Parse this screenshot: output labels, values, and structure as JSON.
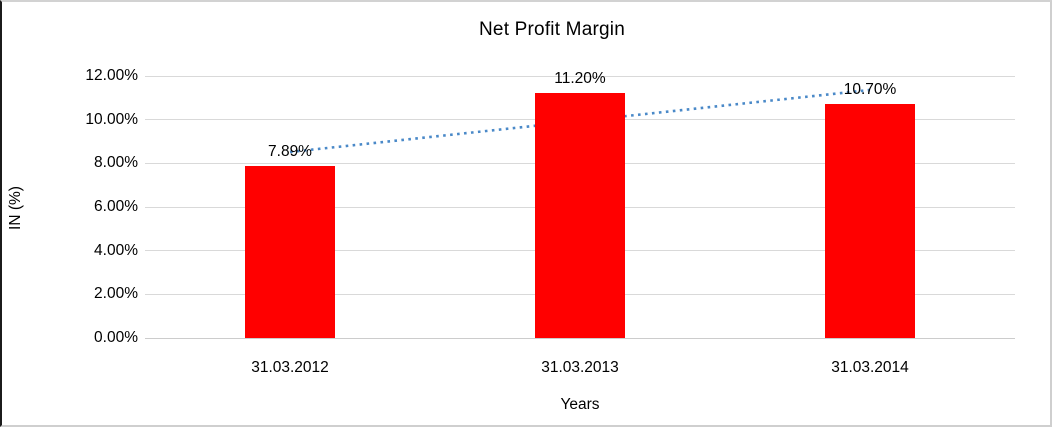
{
  "chart_data": {
    "type": "bar",
    "title": "Net Profit Margin",
    "xlabel": "Years",
    "ylabel": "IN (%)",
    "categories": [
      "31.03.2012",
      "31.03.2013",
      "31.03.2014"
    ],
    "values": [
      7.89,
      11.2,
      10.7
    ],
    "data_labels": [
      "7.89%",
      "11.20%",
      "10.70%"
    ],
    "y_ticks": [
      {
        "value": 0,
        "label": "0.00%"
      },
      {
        "value": 2,
        "label": "2.00%"
      },
      {
        "value": 4,
        "label": "4.00%"
      },
      {
        "value": 6,
        "label": "6.00%"
      },
      {
        "value": 8,
        "label": "8.00%"
      },
      {
        "value": 10,
        "label": "10.00%"
      },
      {
        "value": 12,
        "label": "12.00%"
      }
    ],
    "ylim": [
      0,
      12
    ],
    "grid": true,
    "legend": "none",
    "colors": {
      "bar": "#ff0000",
      "gridline": "#d9d9d9",
      "axis_line": "#c9c9c9",
      "text": "#000000",
      "trendline": "#4a89c8"
    },
    "trendline": {
      "style": "dotted",
      "type": "linear",
      "color": "#4a89c8",
      "start_value": 8.52,
      "end_value": 11.36,
      "start_category_index": 0,
      "end_category_index": 2
    }
  }
}
